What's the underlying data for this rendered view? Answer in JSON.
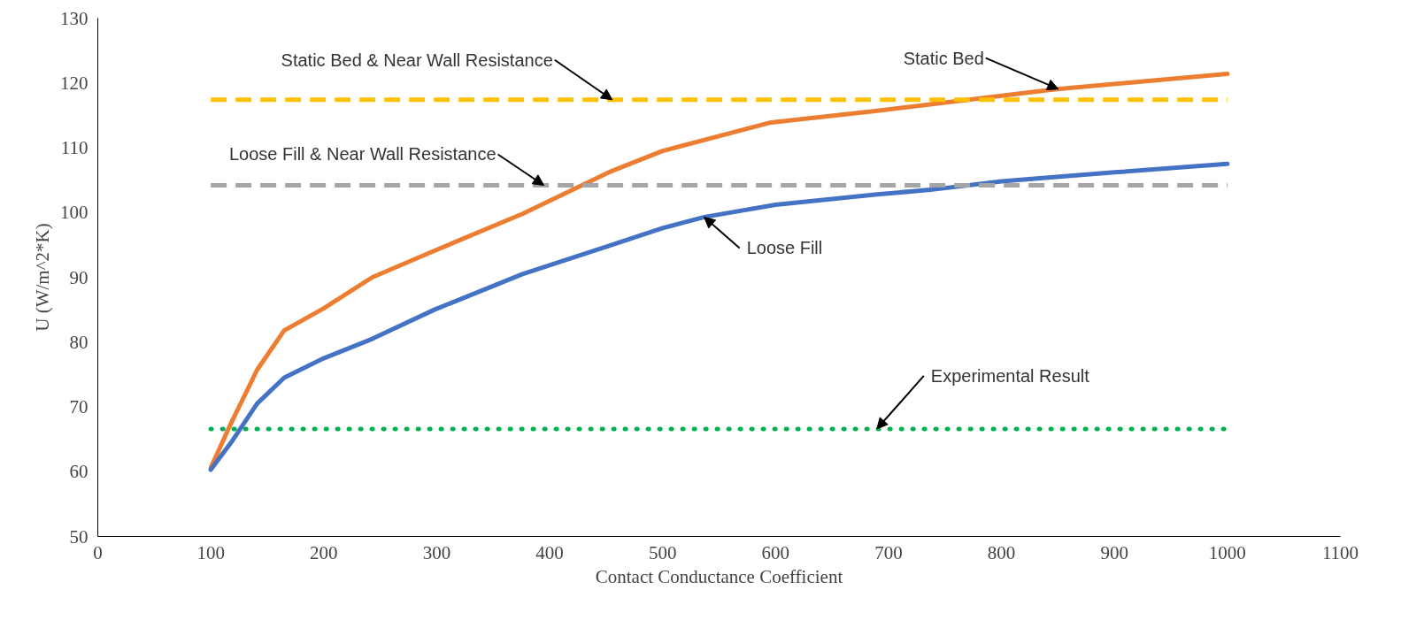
{
  "chart_data": {
    "type": "line",
    "xlabel": "Contact Conductance Coefficient",
    "ylabel": "U (W/m^2*K)",
    "xlim": [
      0,
      1100
    ],
    "ylim": [
      50,
      130
    ],
    "xticks": [
      0,
      100,
      200,
      300,
      400,
      500,
      600,
      700,
      800,
      900,
      1000,
      1100
    ],
    "yticks": [
      50,
      60,
      70,
      80,
      90,
      100,
      110,
      120,
      130
    ],
    "grid": false,
    "legend": false,
    "series": [
      {
        "name": "Static Bed",
        "color": "#ed7d31",
        "line_style": "solid",
        "x": [
          100,
          118,
          141,
          165,
          200,
          243,
          298,
          376,
          455,
          500,
          596,
          690,
          847,
          1000
        ],
        "values": [
          60.6,
          67.5,
          75.7,
          81.8,
          85.2,
          90,
          94.1,
          99.8,
          106.4,
          109.5,
          113.9,
          115.7,
          119,
          121.4
        ]
      },
      {
        "name": "Loose Fill",
        "color": "#4472c4",
        "line_style": "solid",
        "x": [
          100,
          118,
          141,
          165,
          200,
          243,
          298,
          376,
          455,
          500,
          537,
          600,
          690,
          737,
          800,
          900,
          1000
        ],
        "values": [
          60.3,
          64.5,
          70.5,
          74.5,
          77.5,
          80.5,
          85,
          90.5,
          95,
          97.6,
          99.3,
          101.2,
          102.8,
          103.5,
          104.8,
          106.2,
          107.5
        ]
      },
      {
        "name": "Static Bed & Near Wall Resistance",
        "color": "#ffc000",
        "line_style": "dashed",
        "x": [
          100,
          1000
        ],
        "values": [
          117.4,
          117.4
        ]
      },
      {
        "name": "Loose Fill & Near Wall Resistance",
        "color": "#a5a5a5",
        "line_style": "dashed",
        "x": [
          100,
          1000
        ],
        "values": [
          104.2,
          104.2
        ]
      },
      {
        "name": "Experimental Result",
        "color": "#00b050",
        "line_style": "dotted",
        "x": [
          100,
          1000
        ],
        "values": [
          66.6,
          66.6
        ]
      }
    ]
  }
}
